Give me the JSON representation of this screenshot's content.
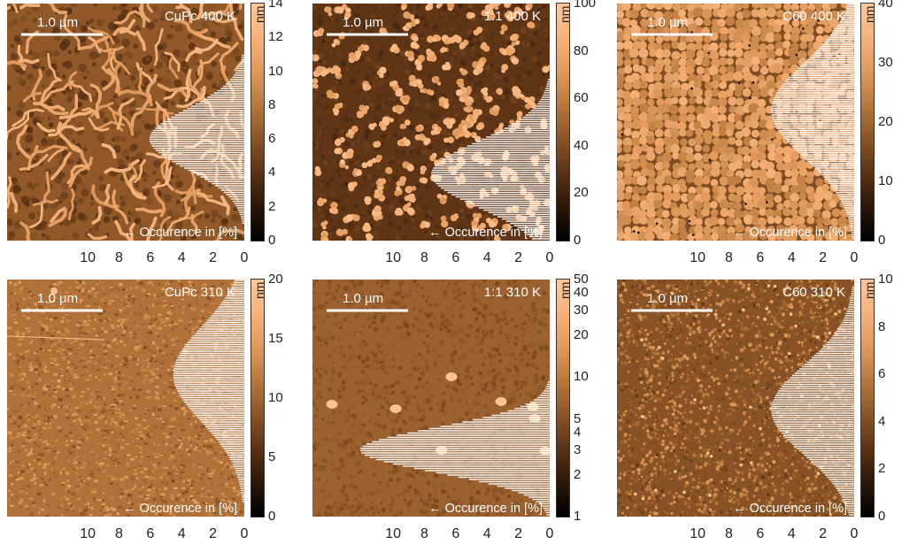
{
  "colors": {
    "colormap": [
      "#000000",
      "#2a1608",
      "#5a3214",
      "#8a5426",
      "#b8773c",
      "#e19a5c",
      "#f7b27a",
      "#ffc898"
    ],
    "hist_fill": "#ffffff",
    "scale_bar": "#ffffff"
  },
  "common": {
    "scale_bar_label": "1.0 µm",
    "hist_label": "← Occurence in [%]",
    "colorbar_unit": "nm",
    "x_ticks": [
      "10",
      "8",
      "6",
      "4",
      "2",
      "0"
    ]
  },
  "chart_data": [
    {
      "type": "heatmap",
      "title": "CuPc 400 K",
      "texture": "worms",
      "colorbar": {
        "ticks": [
          "0",
          "2",
          "4",
          "6",
          "8",
          "10",
          "12",
          "14"
        ],
        "scale": "linear",
        "range": [
          0,
          14
        ]
      },
      "histogram": {
        "xlabel": "Occurence in [%]",
        "x_range": [
          10,
          0
        ],
        "y_range": [
          0,
          14
        ],
        "peak_occurence": 4.0,
        "peak_height": 6.0,
        "width": 1.8
      },
      "show_xticks": true
    },
    {
      "type": "heatmap",
      "title": "1:1 400 K",
      "texture": "grains_dark",
      "colorbar": {
        "ticks": [
          "0",
          "20",
          "40",
          "60",
          "80",
          "100"
        ],
        "scale": "linear",
        "range": [
          0,
          100
        ]
      },
      "histogram": {
        "xlabel": "Occurence in [%]",
        "x_range": [
          10,
          0
        ],
        "y_range": [
          0,
          100
        ],
        "peak_occurence": 5.0,
        "peak_height": 28,
        "width": 14
      },
      "show_xticks": true
    },
    {
      "type": "heatmap",
      "title": "C60 400 K",
      "texture": "grains_dense",
      "colorbar": {
        "ticks": [
          "0",
          "10",
          "20",
          "30",
          "40"
        ],
        "scale": "linear",
        "range": [
          0,
          40
        ]
      },
      "histogram": {
        "xlabel": "Occurence in [%]",
        "x_range": [
          10,
          0
        ],
        "y_range": [
          0,
          40
        ],
        "peak_occurence": 3.5,
        "peak_height": 22,
        "width": 8
      },
      "show_xticks": true
    },
    {
      "type": "heatmap",
      "title": "CuPc 310 K",
      "texture": "fine",
      "colorbar": {
        "ticks": [
          "0",
          "5",
          "10",
          "15",
          "20"
        ],
        "scale": "linear",
        "range": [
          0,
          20
        ]
      },
      "histogram": {
        "xlabel": "Occurence in [%]",
        "x_range": [
          10,
          0
        ],
        "y_range": [
          0,
          20
        ],
        "peak_occurence": 3.0,
        "peak_height": 12.0,
        "width": 4.0
      },
      "show_xticks": true
    },
    {
      "type": "heatmap",
      "title": "1:1 310 K",
      "texture": "flat_blobs",
      "colorbar": {
        "ticks": [
          "1",
          "2",
          "3",
          "4",
          "5",
          "10",
          "20",
          "30",
          "40",
          "50"
        ],
        "scale": "log",
        "range": [
          1,
          50
        ]
      },
      "histogram": {
        "xlabel": "Occurence in [%]",
        "x_range": [
          10,
          0
        ],
        "y_range": [
          1,
          50
        ],
        "peak_occurence": 8.0,
        "peak_height": 3.0,
        "width": 0.45
      },
      "show_xticks": true
    },
    {
      "type": "heatmap",
      "title": "C60 310 K",
      "texture": "fine_grains",
      "colorbar": {
        "ticks": [
          "0",
          "2",
          "4",
          "6",
          "8",
          "10"
        ],
        "scale": "linear",
        "range": [
          0,
          10
        ]
      },
      "histogram": {
        "xlabel": "Occurence in [%]",
        "x_range": [
          10,
          0
        ],
        "y_range": [
          0,
          10
        ],
        "peak_occurence": 3.5,
        "peak_height": 4.5,
        "width": 1.9
      },
      "show_xticks": true
    }
  ]
}
